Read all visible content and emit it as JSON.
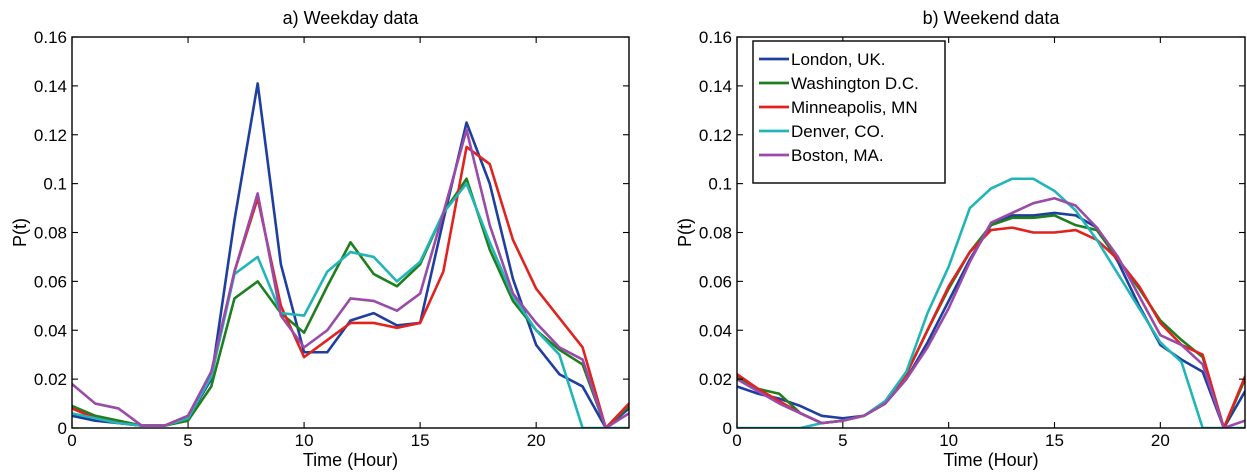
{
  "chart_data": [
    {
      "type": "line",
      "title": "a) Weekday data",
      "xlabel": "Time (Hour)",
      "ylabel": "P(t)",
      "xlim": [
        0,
        24
      ],
      "ylim": [
        0,
        0.16
      ],
      "xticks": [
        0,
        5,
        10,
        15,
        20
      ],
      "yticks": [
        0,
        0.02,
        0.04,
        0.06,
        0.08,
        0.1,
        0.12,
        0.14,
        0.16
      ],
      "ytick_labels": [
        "0",
        "0.02",
        "0.04",
        "0.06",
        "0.08",
        "0.1",
        "0.12",
        "0.14",
        "0.16"
      ],
      "grid": false,
      "x": [
        0,
        1,
        2,
        3,
        4,
        5,
        6,
        7,
        8,
        9,
        10,
        11,
        12,
        13,
        14,
        15,
        16,
        17,
        18,
        19,
        20,
        21,
        22,
        23,
        24
      ],
      "series": [
        {
          "name": "London, UK.",
          "color": "#1f3f9f",
          "values": [
            0.005,
            0.003,
            0.002,
            0.001,
            0.001,
            0.004,
            0.02,
            0.085,
            0.141,
            0.067,
            0.031,
            0.031,
            0.044,
            0.047,
            0.042,
            0.043,
            0.085,
            0.125,
            0.1,
            0.061,
            0.034,
            0.022,
            0.017,
            0.0,
            0.008
          ]
        },
        {
          "name": "Washington D.C.",
          "color": "#1f7f1f",
          "values": [
            0.009,
            0.005,
            0.003,
            0.001,
            0.001,
            0.003,
            0.017,
            0.053,
            0.06,
            0.047,
            0.039,
            0.058,
            0.076,
            0.063,
            0.058,
            0.067,
            0.088,
            0.102,
            0.073,
            0.052,
            0.04,
            0.032,
            0.026,
            0.0,
            0.009
          ]
        },
        {
          "name": "Minneapolis, MN",
          "color": "#e0231e",
          "values": [
            0.008,
            0.004,
            0.002,
            0.001,
            0.001,
            0.005,
            0.021,
            0.064,
            0.094,
            0.05,
            0.029,
            0.036,
            0.043,
            0.043,
            0.041,
            0.043,
            0.064,
            0.115,
            0.108,
            0.077,
            0.057,
            0.045,
            0.033,
            0.0,
            0.01
          ]
        },
        {
          "name": "Denver, CO.",
          "color": "#22b5b8",
          "values": [
            0.006,
            0.004,
            0.002,
            0.001,
            0.001,
            0.004,
            0.021,
            0.063,
            0.07,
            0.047,
            0.046,
            0.064,
            0.072,
            0.07,
            0.06,
            0.068,
            0.088,
            0.1,
            0.076,
            0.054,
            0.04,
            0.03,
            0.0,
            0.0,
            0.0
          ]
        },
        {
          "name": "Boston, MA.",
          "color": "#9a4aa8",
          "values": [
            0.018,
            0.01,
            0.008,
            0.001,
            0.001,
            0.005,
            0.023,
            0.064,
            0.096,
            0.046,
            0.033,
            0.04,
            0.053,
            0.052,
            0.048,
            0.055,
            0.088,
            0.122,
            0.083,
            0.055,
            0.043,
            0.033,
            0.028,
            0.0,
            0.006
          ]
        }
      ]
    },
    {
      "type": "line",
      "title": "b) Weekend data",
      "xlabel": "Time (Hour)",
      "ylabel": "P(t)",
      "xlim": [
        0,
        24
      ],
      "ylim": [
        0,
        0.16
      ],
      "xticks": [
        0,
        5,
        10,
        15,
        20
      ],
      "yticks": [
        0,
        0.02,
        0.04,
        0.06,
        0.08,
        0.1,
        0.12,
        0.14,
        0.16
      ],
      "ytick_labels": [
        "0",
        "0.02",
        "0.04",
        "0.06",
        "0.08",
        "0.1",
        "0.12",
        "0.14",
        "0.16"
      ],
      "grid": false,
      "legend": "top-left",
      "x": [
        0,
        1,
        2,
        3,
        4,
        5,
        6,
        7,
        8,
        9,
        10,
        11,
        12,
        13,
        14,
        15,
        16,
        17,
        18,
        19,
        20,
        21,
        22,
        23,
        24
      ],
      "series": [
        {
          "name": "London, UK.",
          "color": "#1f3f9f",
          "values": [
            0.017,
            0.014,
            0.012,
            0.009,
            0.005,
            0.004,
            0.005,
            0.01,
            0.02,
            0.035,
            0.052,
            0.069,
            0.083,
            0.087,
            0.087,
            0.088,
            0.087,
            0.082,
            0.068,
            0.05,
            0.034,
            0.028,
            0.023,
            0.0,
            0.015
          ]
        },
        {
          "name": "Washington D.C.",
          "color": "#1f7f1f",
          "values": [
            0.021,
            0.016,
            0.014,
            0.006,
            0.002,
            0.003,
            0.005,
            0.01,
            0.022,
            0.04,
            0.057,
            0.072,
            0.083,
            0.086,
            0.086,
            0.087,
            0.083,
            0.081,
            0.069,
            0.057,
            0.044,
            0.036,
            0.029,
            0.0,
            0.02
          ]
        },
        {
          "name": "Minneapolis, MN",
          "color": "#e0231e",
          "values": [
            0.022,
            0.016,
            0.011,
            0.006,
            0.002,
            0.003,
            0.005,
            0.01,
            0.022,
            0.04,
            0.058,
            0.072,
            0.081,
            0.082,
            0.08,
            0.08,
            0.081,
            0.077,
            0.069,
            0.058,
            0.043,
            0.034,
            0.03,
            0.0,
            0.021
          ]
        },
        {
          "name": "Denver, CO.",
          "color": "#22b5b8",
          "values": [
            0.0,
            0.0,
            0.0,
            0.0,
            0.002,
            0.003,
            0.005,
            0.011,
            0.023,
            0.047,
            0.066,
            0.09,
            0.098,
            0.102,
            0.102,
            0.097,
            0.089,
            0.077,
            0.063,
            0.049,
            0.035,
            0.027,
            0.0,
            0.0,
            0.0
          ]
        },
        {
          "name": "Boston, MA.",
          "color": "#9a4aa8",
          "values": [
            0.02,
            0.015,
            0.01,
            0.006,
            0.002,
            0.003,
            0.005,
            0.01,
            0.02,
            0.033,
            0.049,
            0.068,
            0.084,
            0.088,
            0.092,
            0.094,
            0.091,
            0.082,
            0.07,
            0.054,
            0.038,
            0.034,
            0.026,
            0.0,
            0.003
          ]
        }
      ]
    }
  ]
}
